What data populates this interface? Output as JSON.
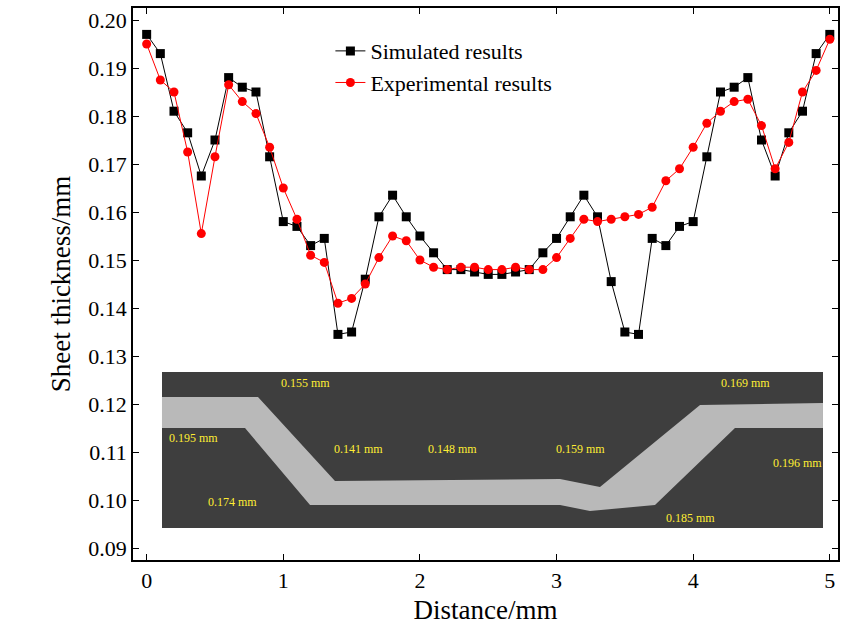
{
  "chart_data": {
    "type": "line",
    "xlabel": "Distance/mm",
    "ylabel": "Sheet thickness/mm",
    "x": [
      0,
      0.1,
      0.2,
      0.3,
      0.4,
      0.5,
      0.6,
      0.7,
      0.8,
      0.9,
      1.0,
      1.1,
      1.2,
      1.3,
      1.4,
      1.5,
      1.6,
      1.7,
      1.8,
      1.9,
      2.0,
      2.1,
      2.2,
      2.3,
      2.4,
      2.5,
      2.6,
      2.7,
      2.8,
      2.9,
      3.0,
      3.1,
      3.2,
      3.3,
      3.4,
      3.5,
      3.6,
      3.7,
      3.8,
      3.9,
      4.0,
      4.1,
      4.2,
      4.3,
      4.4,
      4.5,
      4.6,
      4.7,
      4.8,
      4.9,
      5.0
    ],
    "series": [
      {
        "name": "Simulated results",
        "color": "#000000",
        "marker": "square",
        "line_style": "solid",
        "values": [
          0.197,
          0.193,
          0.181,
          0.1765,
          0.1675,
          0.175,
          0.188,
          0.186,
          0.185,
          0.1715,
          0.158,
          0.157,
          0.153,
          0.1545,
          0.1345,
          0.135,
          0.146,
          0.159,
          0.1635,
          0.159,
          0.155,
          0.1515,
          0.148,
          0.148,
          0.1475,
          0.147,
          0.147,
          0.1475,
          0.148,
          0.1515,
          0.1545,
          0.159,
          0.1635,
          0.159,
          0.1455,
          0.135,
          0.1345,
          0.1545,
          0.153,
          0.157,
          0.158,
          0.1715,
          0.185,
          0.186,
          0.188,
          0.175,
          0.1675,
          0.1765,
          0.181,
          0.193,
          0.197
        ]
      },
      {
        "name": "Experimental results",
        "color": "#ff0000",
        "marker": "circle",
        "line_style": "solid",
        "values": [
          0.195,
          0.1875,
          0.185,
          0.1725,
          0.1555,
          0.1715,
          0.1865,
          0.183,
          0.1805,
          0.1735,
          0.165,
          0.1585,
          0.151,
          0.1495,
          0.141,
          0.142,
          0.145,
          0.1505,
          0.155,
          0.154,
          0.15,
          0.1485,
          0.148,
          0.1485,
          0.1485,
          0.148,
          0.148,
          0.1485,
          0.148,
          0.148,
          0.1505,
          0.1545,
          0.1585,
          0.158,
          0.1585,
          0.159,
          0.1595,
          0.161,
          0.1665,
          0.169,
          0.1735,
          0.1785,
          0.181,
          0.183,
          0.1835,
          0.178,
          0.169,
          0.1745,
          0.185,
          0.1895,
          0.196
        ]
      }
    ],
    "xlim": [
      -0.1,
      5.06
    ],
    "ylim": [
      0.0875,
      0.2025
    ],
    "xticks": [
      0,
      1,
      2,
      3,
      4,
      5
    ],
    "yticks": [
      0.09,
      {
        "value": 0.1,
        "label": "0.10"
      },
      0.11,
      0.12,
      0.13,
      0.14,
      0.15,
      0.16,
      0.17,
      0.18,
      0.19,
      {
        "value": 0.2,
        "label": "0.20"
      }
    ],
    "grid": false,
    "legend": "top",
    "annotations": [
      "0.155 mm",
      "0.195 mm",
      "0.174 mm",
      "0.141 mm",
      "0.148 mm",
      "0.159 mm",
      "0.185 mm",
      "0.169 mm",
      "0.196 mm"
    ]
  }
}
